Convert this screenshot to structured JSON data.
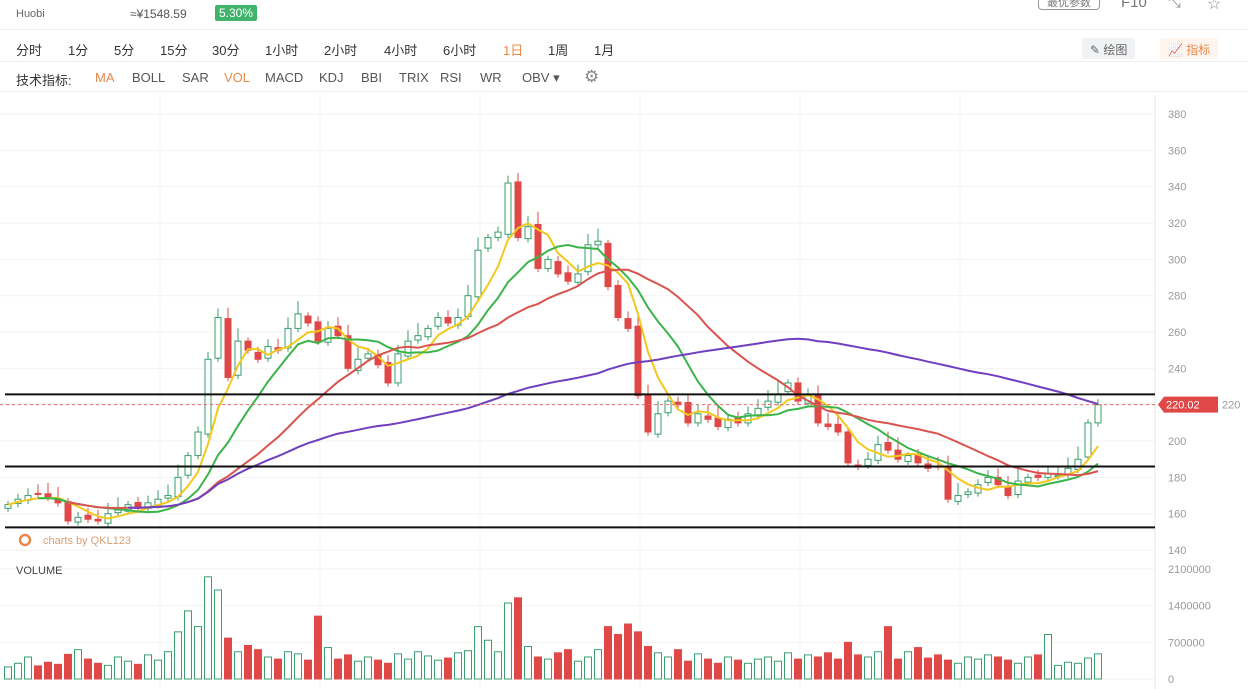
{
  "header": {
    "exchange": "Huobi",
    "cny_price": "≈¥1548.59",
    "change": "5.30%",
    "optimal_params": "最优参数",
    "f10": "F10"
  },
  "periods": [
    "分时",
    "1分",
    "5分",
    "15分",
    "30分",
    "1小时",
    "2小时",
    "4小时",
    "6小时",
    "1日",
    "1周",
    "1月"
  ],
  "active_period": "1日",
  "indicator_label": "技术指标:",
  "indicators": [
    "MA",
    "BOLL",
    "SAR",
    "VOL",
    "MACD",
    "KDJ",
    "BBI",
    "TRIX",
    "RSI",
    "WR",
    "OBV"
  ],
  "active_indicators": [
    "MA",
    "VOL"
  ],
  "tools": {
    "draw": "绘图",
    "indicator": "指标"
  },
  "watermark": "charts by QKL123",
  "colors": {
    "up": "#3a9e6e",
    "down": "#e04848",
    "ma5": "#f2c81d",
    "ma10": "#3cb44b",
    "ma20": "#d9534f",
    "ma60": "#6f3fc0",
    "badge": "#41b46c"
  },
  "chart_data": {
    "type": "candlestick",
    "price_axis": {
      "ticks": [
        380,
        360,
        340,
        320,
        300,
        280,
        260,
        240,
        220,
        200,
        180,
        160,
        140
      ],
      "range": [
        140,
        380
      ]
    },
    "last_price": "220.02",
    "last_price_value": 220.02,
    "horizontal_lines": [
      225.7,
      186,
      152.5
    ],
    "volume_label": "VOLUME",
    "volume_axis": {
      "ticks": [
        "2100000",
        "1400000",
        "700000",
        "0"
      ],
      "range": [
        0,
        2100000
      ]
    },
    "ma_periods": [
      5,
      10,
      20,
      60
    ],
    "closes": [
      165,
      168,
      170,
      171,
      169,
      166,
      156,
      158,
      157,
      156,
      160,
      162,
      165,
      163,
      166,
      168,
      170,
      180,
      192,
      205,
      245,
      268,
      235,
      255,
      250,
      245,
      252,
      250,
      262,
      270,
      265,
      255,
      262,
      258,
      240,
      245,
      248,
      242,
      232,
      248,
      255,
      258,
      262,
      268,
      265,
      268,
      280,
      305,
      312,
      315,
      342,
      312,
      318,
      295,
      300,
      292,
      288,
      292,
      308,
      310,
      285,
      268,
      262,
      225,
      205,
      215,
      222,
      220,
      210,
      215,
      212,
      208,
      212,
      210,
      215,
      218,
      222,
      226,
      232,
      222,
      225,
      210,
      208,
      205,
      188,
      186,
      190,
      198,
      195,
      190,
      192,
      188,
      185,
      186,
      168,
      170,
      172,
      176,
      180,
      176,
      170,
      178,
      180,
      180,
      182,
      181,
      185,
      190,
      210,
      220
    ],
    "volumes_k": [
      230,
      300,
      420,
      250,
      320,
      280,
      470,
      560,
      380,
      300,
      260,
      420,
      340,
      280,
      460,
      360,
      520,
      900,
      1300,
      1000,
      1950,
      1700,
      780,
      520,
      640,
      560,
      420,
      380,
      520,
      480,
      360,
      1200,
      600,
      380,
      460,
      340,
      420,
      360,
      300,
      480,
      380,
      520,
      440,
      360,
      400,
      500,
      540,
      1000,
      740,
      520,
      1450,
      1550,
      620,
      420,
      380,
      500,
      560,
      340,
      420,
      560,
      1000,
      850,
      1050,
      900,
      620,
      500,
      420,
      560,
      340,
      480,
      380,
      300,
      420,
      360,
      300,
      380,
      420,
      340,
      500,
      380,
      460,
      420,
      500,
      380,
      700,
      460,
      420,
      520,
      1000,
      380,
      520,
      600,
      400,
      460,
      360,
      300,
      420,
      380,
      460,
      420,
      360,
      300,
      420,
      460,
      850,
      260,
      320,
      300,
      400,
      480,
      550,
      650
    ]
  }
}
